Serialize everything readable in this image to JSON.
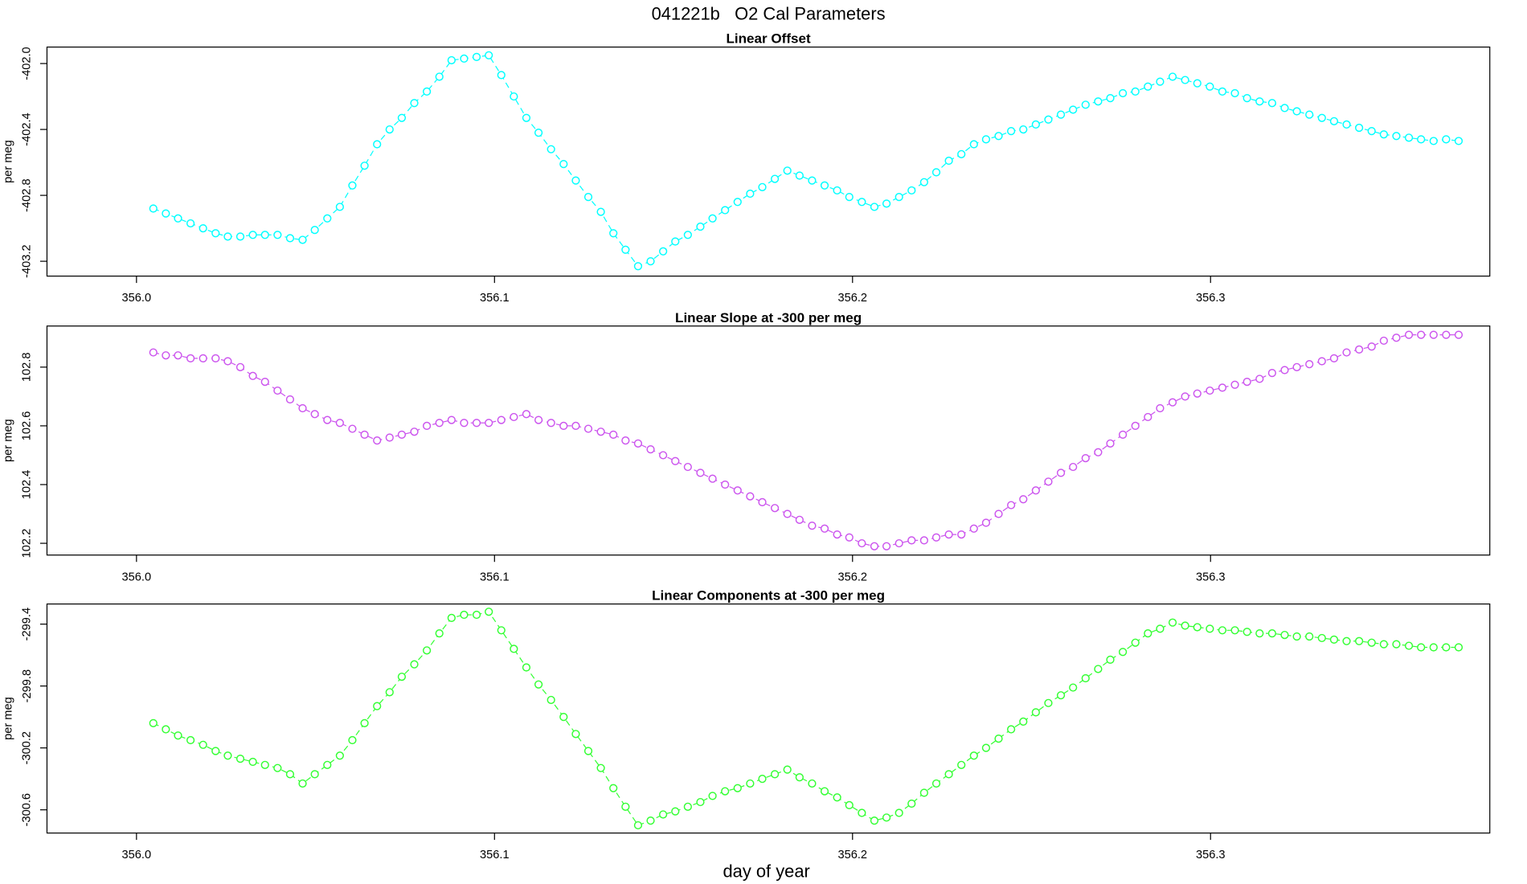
{
  "title": "041221b   O2 Cal Parameters",
  "xlabel": "day of year",
  "chart_data": [
    {
      "type": "line",
      "title": "Linear Offset",
      "ylabel": "per meg",
      "color": "#00ffff",
      "linestyle": "dashed",
      "marker": "circle",
      "x": [
        356.0047,
        356.0082,
        356.0116,
        356.0151,
        356.0186,
        356.0221,
        356.0255,
        356.029,
        356.0325,
        356.0359,
        356.0394,
        356.0429,
        356.0464,
        356.0498,
        356.0533,
        356.0568,
        356.0603,
        356.0637,
        356.0672,
        356.0707,
        356.0741,
        356.0776,
        356.0811,
        356.0846,
        356.088,
        356.0915,
        356.095,
        356.0984,
        356.1019,
        356.1054,
        356.1089,
        356.1123,
        356.1158,
        356.1193,
        356.1227,
        356.1262,
        356.1297,
        356.1332,
        356.1366,
        356.1401,
        356.1436,
        356.1471,
        356.1505,
        356.154,
        356.1575,
        356.1609,
        356.1644,
        356.1679,
        356.1714,
        356.1748,
        356.1783,
        356.1818,
        356.1852,
        356.1887,
        356.1922,
        356.1957,
        356.1991,
        356.2026,
        356.2061,
        356.2095,
        356.213,
        356.2165,
        356.22,
        356.2234,
        356.2269,
        356.2304,
        356.2339,
        356.2373,
        356.2408,
        356.2443,
        356.2477,
        356.2512,
        356.2547,
        356.2582,
        356.2616,
        356.2651,
        356.2686,
        356.272,
        356.2755,
        356.279,
        356.2825,
        356.2859,
        356.2894,
        356.2929,
        356.2963,
        356.2998,
        356.3033,
        356.3068,
        356.3102,
        356.3137,
        356.3172,
        356.3207,
        356.3241,
        356.3276,
        356.3311,
        356.3345,
        356.338,
        356.3415,
        356.345,
        356.3484,
        356.3519,
        356.3554,
        356.3588,
        356.3623,
        356.3658,
        356.3693
      ],
      "values": [
        -402.88,
        -402.91,
        -402.94,
        -402.97,
        -403.0,
        -403.03,
        -403.05,
        -403.05,
        -403.04,
        -403.04,
        -403.04,
        -403.06,
        -403.07,
        -403.01,
        -402.94,
        -402.87,
        -402.74,
        -402.62,
        -402.49,
        -402.4,
        -402.33,
        -402.24,
        -402.17,
        -402.08,
        -401.98,
        -401.97,
        -401.96,
        -401.95,
        -402.07,
        -402.2,
        -402.33,
        -402.42,
        -402.52,
        -402.61,
        -402.71,
        -402.81,
        -402.9,
        -403.03,
        -403.13,
        -403.23,
        -403.2,
        -403.14,
        -403.08,
        -403.04,
        -402.99,
        -402.94,
        -402.89,
        -402.84,
        -402.79,
        -402.75,
        -402.7,
        -402.65,
        -402.68,
        -402.71,
        -402.74,
        -402.77,
        -402.81,
        -402.84,
        -402.87,
        -402.85,
        -402.81,
        -402.77,
        -402.72,
        -402.66,
        -402.59,
        -402.55,
        -402.49,
        -402.46,
        -402.44,
        -402.41,
        -402.4,
        -402.37,
        -402.34,
        -402.31,
        -402.28,
        -402.25,
        -402.23,
        -402.21,
        -402.18,
        -402.17,
        -402.14,
        -402.11,
        -402.08,
        -402.1,
        -402.12,
        -402.14,
        -402.17,
        -402.18,
        -402.21,
        -402.23,
        -402.24,
        -402.27,
        -402.29,
        -402.31,
        -402.33,
        -402.35,
        -402.37,
        -402.39,
        -402.41,
        -402.43,
        -402.44,
        -402.45,
        -402.46,
        -402.47,
        -402.46,
        -402.47
      ],
      "xlim": [
        355.975,
        356.378
      ],
      "xticks": [
        {
          "value": 356,
          "label": "356.0"
        },
        356.1,
        356.2,
        356.3
      ],
      "ylim": [
        -403.29,
        -401.9
      ],
      "yticks": [
        {
          "value": -402,
          "label": "-402.0"
        },
        -402.4,
        -402.8,
        -403.2
      ]
    },
    {
      "type": "line",
      "title": "Linear Slope at -300 per meg",
      "ylabel": "per meg",
      "color": "#cc55ee",
      "linestyle": "dashed",
      "marker": "circle",
      "x": [
        356.0047,
        356.0082,
        356.0116,
        356.0151,
        356.0186,
        356.0221,
        356.0255,
        356.029,
        356.0325,
        356.0359,
        356.0394,
        356.0429,
        356.0464,
        356.0498,
        356.0533,
        356.0568,
        356.0603,
        356.0637,
        356.0672,
        356.0707,
        356.0741,
        356.0776,
        356.0811,
        356.0846,
        356.088,
        356.0915,
        356.095,
        356.0984,
        356.1019,
        356.1054,
        356.1089,
        356.1123,
        356.1158,
        356.1193,
        356.1227,
        356.1262,
        356.1297,
        356.1332,
        356.1366,
        356.1401,
        356.1436,
        356.1471,
        356.1505,
        356.154,
        356.1575,
        356.1609,
        356.1644,
        356.1679,
        356.1714,
        356.1748,
        356.1783,
        356.1818,
        356.1852,
        356.1887,
        356.1922,
        356.1957,
        356.1991,
        356.2026,
        356.2061,
        356.2095,
        356.213,
        356.2165,
        356.22,
        356.2234,
        356.2269,
        356.2304,
        356.2339,
        356.2373,
        356.2408,
        356.2443,
        356.2477,
        356.2512,
        356.2547,
        356.2582,
        356.2616,
        356.2651,
        356.2686,
        356.272,
        356.2755,
        356.279,
        356.2825,
        356.2859,
        356.2894,
        356.2929,
        356.2963,
        356.2998,
        356.3033,
        356.3068,
        356.3102,
        356.3137,
        356.3172,
        356.3207,
        356.3241,
        356.3276,
        356.3311,
        356.3345,
        356.338,
        356.3415,
        356.345,
        356.3484,
        356.3519,
        356.3554,
        356.3588,
        356.3623,
        356.3658,
        356.3693
      ],
      "values": [
        102.85,
        102.84,
        102.84,
        102.83,
        102.83,
        102.83,
        102.82,
        102.8,
        102.77,
        102.75,
        102.72,
        102.69,
        102.66,
        102.64,
        102.62,
        102.61,
        102.59,
        102.57,
        102.55,
        102.56,
        102.57,
        102.58,
        102.6,
        102.61,
        102.62,
        102.61,
        102.61,
        102.61,
        102.62,
        102.63,
        102.64,
        102.62,
        102.61,
        102.6,
        102.6,
        102.59,
        102.58,
        102.57,
        102.55,
        102.54,
        102.52,
        102.5,
        102.48,
        102.46,
        102.44,
        102.42,
        102.4,
        102.38,
        102.36,
        102.34,
        102.32,
        102.3,
        102.28,
        102.26,
        102.25,
        102.23,
        102.22,
        102.2,
        102.19,
        102.19,
        102.2,
        102.21,
        102.21,
        102.22,
        102.23,
        102.23,
        102.25,
        102.27,
        102.3,
        102.33,
        102.35,
        102.38,
        102.41,
        102.44,
        102.46,
        102.49,
        102.51,
        102.54,
        102.57,
        102.6,
        102.63,
        102.66,
        102.68,
        102.7,
        102.71,
        102.72,
        102.73,
        102.74,
        102.75,
        102.76,
        102.78,
        102.79,
        102.8,
        102.81,
        102.82,
        102.83,
        102.85,
        102.86,
        102.87,
        102.89,
        102.9,
        102.91,
        102.91,
        102.91,
        102.91,
        102.91
      ],
      "xlim": [
        355.975,
        356.378
      ],
      "xticks": [
        {
          "value": 356,
          "label": "356.0"
        },
        356.1,
        356.2,
        356.3
      ],
      "ylim": [
        102.16,
        102.94
      ],
      "yticks": [
        102.2,
        102.4,
        102.6,
        102.8
      ]
    },
    {
      "type": "line",
      "title": "Linear Components at -300 per meg",
      "ylabel": "per meg",
      "color": "#33ff33",
      "linestyle": "dashed",
      "marker": "circle",
      "x": [
        356.0047,
        356.0082,
        356.0116,
        356.0151,
        356.0186,
        356.0221,
        356.0255,
        356.029,
        356.0325,
        356.0359,
        356.0394,
        356.0429,
        356.0464,
        356.0498,
        356.0533,
        356.0568,
        356.0603,
        356.0637,
        356.0672,
        356.0707,
        356.0741,
        356.0776,
        356.0811,
        356.0846,
        356.088,
        356.0915,
        356.095,
        356.0984,
        356.1019,
        356.1054,
        356.1089,
        356.1123,
        356.1158,
        356.1193,
        356.1227,
        356.1262,
        356.1297,
        356.1332,
        356.1366,
        356.1401,
        356.1436,
        356.1471,
        356.1505,
        356.154,
        356.1575,
        356.1609,
        356.1644,
        356.1679,
        356.1714,
        356.1748,
        356.1783,
        356.1818,
        356.1852,
        356.1887,
        356.1922,
        356.1957,
        356.1991,
        356.2026,
        356.2061,
        356.2095,
        356.213,
        356.2165,
        356.22,
        356.2234,
        356.2269,
        356.2304,
        356.2339,
        356.2373,
        356.2408,
        356.2443,
        356.2477,
        356.2512,
        356.2547,
        356.2582,
        356.2616,
        356.2651,
        356.2686,
        356.272,
        356.2755,
        356.279,
        356.2825,
        356.2859,
        356.2894,
        356.2929,
        356.2963,
        356.2998,
        356.3033,
        356.3068,
        356.3102,
        356.3137,
        356.3172,
        356.3207,
        356.3241,
        356.3276,
        356.3311,
        356.3345,
        356.338,
        356.3415,
        356.345,
        356.3484,
        356.3519,
        356.3554,
        356.3588,
        356.3623,
        356.3658,
        356.3693
      ],
      "values": [
        -300.04,
        -300.08,
        -300.12,
        -300.15,
        -300.18,
        -300.22,
        -300.25,
        -300.27,
        -300.29,
        -300.31,
        -300.33,
        -300.37,
        -300.43,
        -300.37,
        -300.31,
        -300.25,
        -300.15,
        -300.04,
        -299.93,
        -299.84,
        -299.74,
        -299.66,
        -299.57,
        -299.46,
        -299.36,
        -299.34,
        -299.34,
        -299.32,
        -299.44,
        -299.56,
        -299.68,
        -299.79,
        -299.89,
        -300.0,
        -300.11,
        -300.22,
        -300.33,
        -300.46,
        -300.58,
        -300.7,
        -300.67,
        -300.63,
        -300.61,
        -300.58,
        -300.55,
        -300.51,
        -300.48,
        -300.46,
        -300.43,
        -300.4,
        -300.37,
        -300.34,
        -300.39,
        -300.43,
        -300.48,
        -300.52,
        -300.57,
        -300.62,
        -300.67,
        -300.65,
        -300.62,
        -300.56,
        -300.49,
        -300.43,
        -300.37,
        -300.31,
        -300.25,
        -300.2,
        -300.14,
        -300.08,
        -300.03,
        -299.97,
        -299.91,
        -299.86,
        -299.81,
        -299.75,
        -299.69,
        -299.63,
        -299.58,
        -299.52,
        -299.46,
        -299.43,
        -299.39,
        -299.41,
        -299.42,
        -299.43,
        -299.44,
        -299.44,
        -299.45,
        -299.46,
        -299.46,
        -299.47,
        -299.48,
        -299.48,
        -299.49,
        -299.5,
        -299.51,
        -299.51,
        -299.52,
        -299.53,
        -299.53,
        -299.54,
        -299.55,
        -299.55,
        -299.55,
        -299.55
      ],
      "xlim": [
        355.975,
        356.378
      ],
      "xticks": [
        {
          "value": 356,
          "label": "356.0"
        },
        356.1,
        356.2,
        356.3
      ],
      "ylim": [
        -300.75,
        -299.27
      ],
      "yticks": [
        -299.4,
        -299.8,
        -300.2,
        -300.6
      ]
    }
  ]
}
